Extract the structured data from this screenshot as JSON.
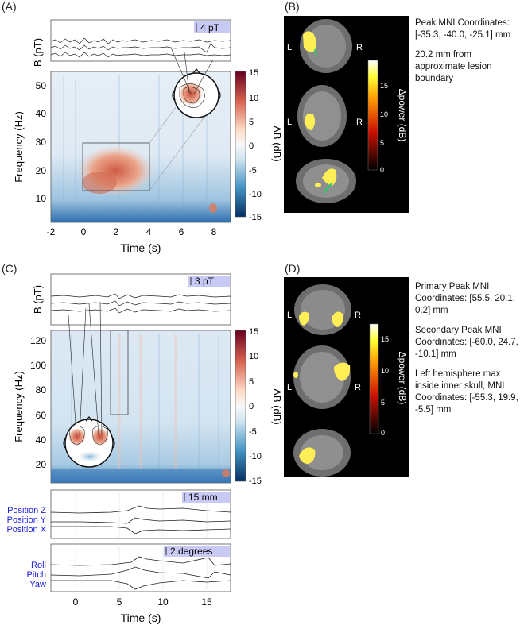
{
  "figure": {
    "panels": {
      "A": {
        "label": "(A)",
        "signal_ylabel": "B (pT)",
        "scalebar_label": "4 pT",
        "xlabel": "Time (s)",
        "ylabel": "Frequency (Hz)",
        "colorbar_label": "ΔB (dB)",
        "x_ticks": [
          "-2",
          "0",
          "2",
          "4",
          "6",
          "8"
        ],
        "y_ticks": [
          "10",
          "20",
          "30",
          "40",
          "50"
        ],
        "colorbar_ticks": [
          "15",
          "10",
          "5",
          "0",
          "-5",
          "-10",
          "-15"
        ]
      },
      "B": {
        "label": "(B)",
        "colorbar_label": "Δpower (dB)",
        "colorbar_ticks": [
          "15",
          "10",
          "5",
          "0"
        ],
        "side_labels": [
          "L",
          "R"
        ],
        "annotations": [
          "Peak MNI Coordinates: [-35.3, -40.0, -25.1] mm",
          "20.2 mm from approximate lesion boundary"
        ]
      },
      "C": {
        "label": "(C)",
        "signal_ylabel": "B (pT)",
        "scalebar_label": "3 pT",
        "xlabel": "Time (s)",
        "ylabel": "Frequency (Hz)",
        "colorbar_label": "ΔB (dB)",
        "x_ticks": [
          "0",
          "5",
          "10",
          "15"
        ],
        "y_ticks": [
          "20",
          "40",
          "60",
          "80",
          "100",
          "120"
        ],
        "colorbar_ticks": [
          "15",
          "10",
          "5",
          "0",
          "-5",
          "-10",
          "-15"
        ],
        "position_scalebar": "15 mm",
        "position_labels": [
          "Position Z",
          "Position Y",
          "Position X"
        ],
        "rotation_scalebar": "2 degrees",
        "rotation_labels": [
          "Roll",
          "Pitch",
          "Yaw"
        ]
      },
      "D": {
        "label": "(D)",
        "colorbar_label": "Δpower (dB)",
        "colorbar_ticks": [
          "15",
          "10",
          "5",
          "0"
        ],
        "side_labels": [
          "L",
          "R"
        ],
        "annotations": [
          "Primary Peak MNI Coordinates: [55.5, 20.1, 0.2] mm",
          "Secondary Peak MNI Coordinates: [-60.0, 24.7, -10.1] mm",
          "Left hemisphere max inside inner skull, MNI Coordinates: [-55.3, 19.9, -5.5] mm"
        ]
      }
    },
    "colors": {
      "label_blue": "#1a1adc",
      "scalebar_bg": "#c9c9f5",
      "brain_yellow": "#ffee55",
      "marker_green": "#22cc66"
    }
  }
}
